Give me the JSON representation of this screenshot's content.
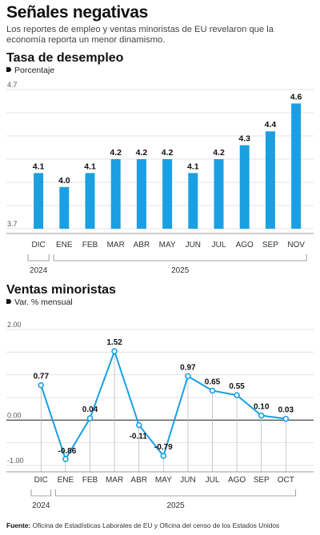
{
  "title": "Señales negativas",
  "subtitle": "Los reportes de empleo y ventas minoristas de EU revelaron que la economía reporta un menor dinamismo.",
  "source_label": "Fuente:",
  "source_text": "Oficina de Estadísticas Laborales de EU y Oficina del censo de los Estados Unidos",
  "colors": {
    "bar": "#1b9fe3",
    "line": "#1b9fe3",
    "grid": "#e3e3e3"
  },
  "chart_data": [
    {
      "type": "bar",
      "title": "Tasa de desempleo",
      "unit": "Porcentaje",
      "categories": [
        "DIC",
        "ENE",
        "FEB",
        "MAR",
        "ABR",
        "MAY",
        "JUN",
        "JUL",
        "AGO",
        "SEP",
        "NOV"
      ],
      "values": [
        4.1,
        4.0,
        4.1,
        4.2,
        4.2,
        4.2,
        4.1,
        4.2,
        4.3,
        4.4,
        4.6
      ],
      "value_labels": [
        "4.1",
        "4.0",
        "4.1",
        "4.2",
        "4.2",
        "4.2",
        "4.1",
        "4.2",
        "4.3",
        "4.4",
        "4.6"
      ],
      "ylim": [
        3.7,
        4.7
      ],
      "yticks": [
        "4.7",
        "3.7"
      ],
      "years": [
        {
          "label": "2024",
          "from": 0,
          "to": 0
        },
        {
          "label": "2025",
          "from": 1,
          "to": 10
        }
      ],
      "grid": true
    },
    {
      "type": "line",
      "title": "Ventas minoristas",
      "unit": "Var. % mensual",
      "categories": [
        "DIC",
        "ENE",
        "FEB",
        "MAR",
        "ABR",
        "MAY",
        "JUN",
        "JUL",
        "AGO",
        "SEP",
        "OCT"
      ],
      "values": [
        0.77,
        -0.86,
        0.04,
        1.52,
        -0.11,
        -0.79,
        0.97,
        0.65,
        0.55,
        0.1,
        0.03
      ],
      "value_labels": [
        "0.77",
        "-0.86",
        "0.04",
        "1.52",
        "-0.11",
        "-0.79",
        "0.97",
        "0.65",
        "0.55",
        "0.10",
        "0.03"
      ],
      "ylim": [
        -1.0,
        2.0
      ],
      "yticks": [
        "2.00",
        "0.00",
        "-1.00"
      ],
      "years": [
        {
          "label": "2024",
          "from": 0,
          "to": 0
        },
        {
          "label": "2025",
          "from": 1,
          "to": 10
        }
      ],
      "grid": true
    }
  ]
}
